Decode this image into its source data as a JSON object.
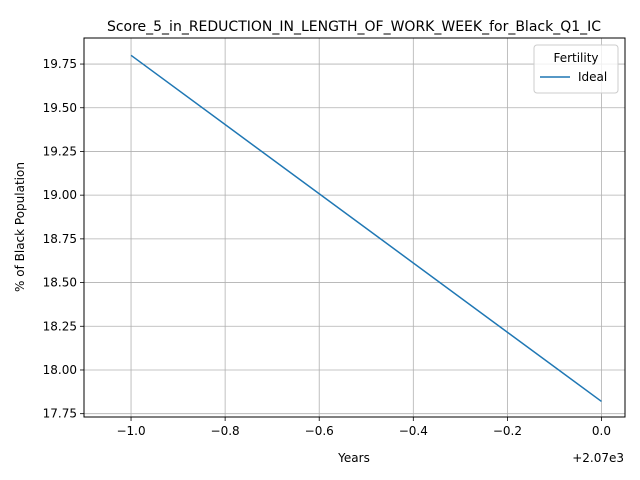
{
  "chart_data": {
    "type": "line",
    "title": "Score_5_in_REDUCTION_IN_LENGTH_OF_WORK_WEEK_for_Black_Q1_IC",
    "xlabel": "Years",
    "ylabel": "% of Black Population",
    "x_offset_label": "+2.07e3",
    "x_ticks": [
      "−1.0",
      "−0.8",
      "−0.6",
      "−0.4",
      "−0.2",
      "0.0"
    ],
    "y_ticks": [
      "17.75",
      "18.00",
      "18.25",
      "18.50",
      "18.75",
      "19.00",
      "19.25",
      "19.50",
      "19.75"
    ],
    "xlim": [
      2068.9,
      2070.05
    ],
    "ylim": [
      17.731,
      19.899
    ],
    "grid": true,
    "legend": {
      "title": "Fertility",
      "placement": "top-right"
    },
    "series": [
      {
        "name": "Ideal",
        "color": "#1f77b4",
        "x": [
          2069,
          2070
        ],
        "y": [
          19.8,
          17.82
        ]
      }
    ]
  }
}
